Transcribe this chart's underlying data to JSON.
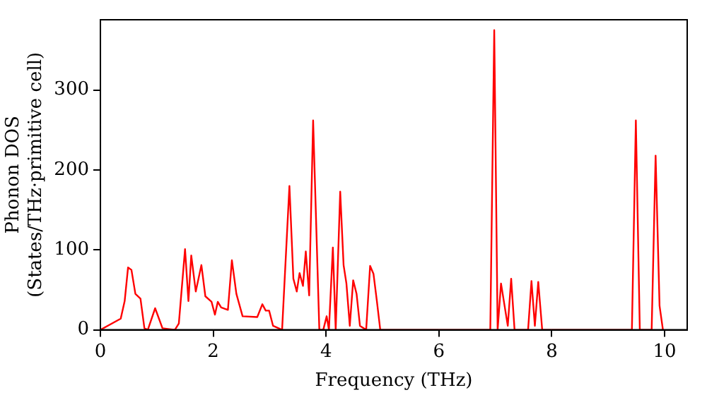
{
  "chart_data": {
    "type": "line",
    "xlabel": "Frequency (THz)",
    "ylabel": "Phonon DOS\n(States/THz·primitive cell)",
    "xlim": [
      0,
      10.4
    ],
    "xticks": [
      0,
      2,
      4,
      6,
      8,
      10
    ],
    "ylim": [
      0,
      388
    ],
    "yticks": [
      0,
      100,
      200,
      300
    ],
    "grid": false,
    "legend": false,
    "marker": "none",
    "line_style": "solid",
    "series": [
      {
        "color": "#ff0000",
        "x": [
          0,
          0.36,
          0.43,
          0.49,
          0.55,
          0.62,
          0.71,
          0.78,
          0.84,
          0.97,
          1.1,
          1.32,
          1.39,
          1.5,
          1.56,
          1.61,
          1.69,
          1.79,
          1.86,
          1.97,
          2.03,
          2.08,
          2.14,
          2.26,
          2.33,
          2.41,
          2.52,
          2.78,
          2.87,
          2.93,
          2.99,
          3.06,
          3.22,
          3.35,
          3.42,
          3.48,
          3.53,
          3.59,
          3.64,
          3.7,
          3.77,
          3.88,
          3.95,
          4.01,
          4.05,
          4.12,
          4.17,
          4.25,
          4.31,
          4.36,
          4.42,
          4.48,
          4.54,
          4.6,
          4.71,
          4.78,
          4.84,
          4.9,
          4.96,
          6.91,
          6.98,
          7.04,
          7.1,
          7.22,
          7.28,
          7.34,
          7.58,
          7.64,
          7.7,
          7.76,
          7.83,
          9.42,
          9.49,
          9.56,
          9.77,
          9.84,
          9.91,
          9.97
        ],
        "values": [
          0,
          14,
          36,
          78,
          75,
          45,
          39,
          2,
          0,
          27,
          2,
          0,
          8,
          101,
          36,
          93,
          48,
          81,
          42,
          35,
          19,
          35,
          28,
          25,
          87,
          45,
          17,
          16,
          32,
          24,
          24,
          5,
          0,
          180,
          64,
          48,
          71,
          55,
          98,
          43,
          262,
          0,
          0,
          17,
          0,
          103,
          0,
          173,
          81,
          58,
          5,
          62,
          45,
          5,
          0,
          80,
          70,
          36,
          0,
          0,
          375,
          0,
          58,
          5,
          64,
          0,
          0,
          61,
          5,
          60,
          0,
          0,
          262,
          0,
          0,
          218,
          30,
          0
        ]
      }
    ]
  }
}
